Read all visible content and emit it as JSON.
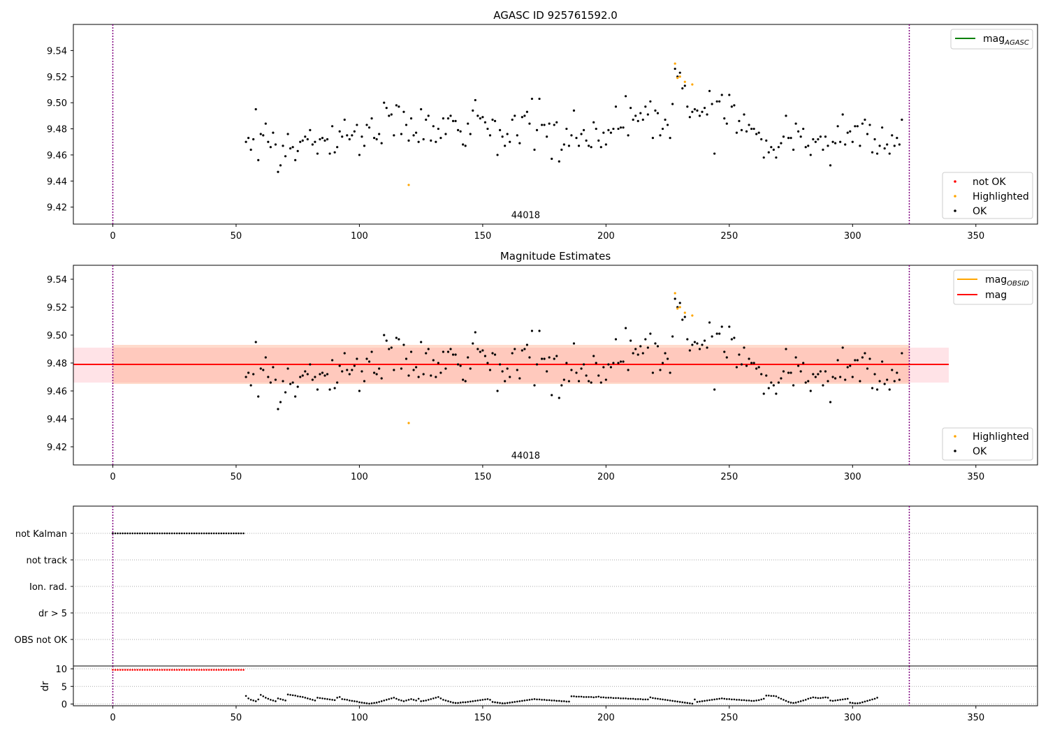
{
  "chart_data": [
    {
      "type": "scatter",
      "title": "AGASC ID 925761592.0",
      "xlim": [
        -16,
        375
      ],
      "ylim": [
        9.407,
        9.56
      ],
      "xticks": [
        0,
        50,
        100,
        150,
        200,
        250,
        300,
        350
      ],
      "yticks": [
        9.42,
        9.44,
        9.46,
        9.48,
        9.5,
        9.52,
        9.54
      ],
      "ytick_labels": [
        "9.42",
        "9.44",
        "9.46",
        "9.48",
        "9.50",
        "9.52",
        "9.54"
      ],
      "vlines": [
        0,
        323
      ],
      "annotation": {
        "text": "44018",
        "x": 161,
        "y": 9.412
      },
      "legend_top": {
        "position": "upper right",
        "entries": [
          {
            "label": "mag",
            "sub": "AGASC",
            "color": "#008000"
          }
        ]
      },
      "legend_bottom": {
        "position": "lower right",
        "entries": [
          {
            "label": "not OK",
            "color": "#ff0000"
          },
          {
            "label": "Highlighted",
            "color": "#ffa500"
          },
          {
            "label": "OK",
            "color": "#000000"
          }
        ]
      },
      "series": [
        {
          "name": "OK",
          "color": "#000000",
          "x_start": 54,
          "x_end": 323,
          "values": [
            9.47,
            9.473,
            9.464,
            9.472,
            9.495,
            9.456,
            9.476,
            9.475,
            9.484,
            9.47,
            9.466,
            9.477,
            9.468,
            9.447,
            9.452,
            9.467,
            9.459,
            9.476,
            9.465,
            9.466,
            9.456,
            9.463,
            9.47,
            9.471,
            9.474,
            9.472,
            9.479,
            9.468,
            9.47,
            9.461,
            9.472,
            9.473,
            9.471,
            9.472,
            9.461,
            9.482,
            9.462,
            9.466,
            9.478,
            9.474,
            9.487,
            9.475,
            9.472,
            9.475,
            9.478,
            9.483,
            9.46,
            9.474,
            9.467,
            9.483,
            9.481,
            9.488,
            9.473,
            9.472,
            9.476,
            9.469,
            9.5,
            9.496,
            9.49,
            9.491,
            9.475,
            9.498,
            9.497,
            9.476,
            9.493,
            9.483,
            9.471,
            9.488,
            9.475,
            9.477,
            9.47,
            9.495,
            9.472,
            9.487,
            9.49,
            9.471,
            9.482,
            9.47,
            9.48,
            9.473,
            9.488,
            9.476,
            9.488,
            9.49,
            9.486,
            9.486,
            9.479,
            9.478,
            9.468,
            9.467,
            9.484,
            9.476,
            9.494,
            9.502,
            9.49,
            9.488,
            9.489,
            9.485,
            9.48,
            9.475,
            9.487,
            9.486,
            9.46,
            9.479,
            9.474,
            9.467,
            9.476,
            9.47,
            9.487,
            9.49,
            9.475,
            9.469,
            9.489,
            9.49,
            9.493,
            9.484,
            9.503,
            9.464,
            9.479,
            9.503,
            9.483,
            9.483,
            9.474,
            9.484,
            9.457,
            9.483,
            9.485,
            9.455,
            9.464,
            9.468,
            9.48,
            9.467,
            9.475,
            9.494,
            9.473,
            9.467,
            9.476,
            9.479,
            9.471,
            9.467,
            9.466,
            9.485,
            9.48,
            9.471,
            9.466,
            9.477,
            9.468,
            9.479,
            9.477,
            9.48,
            9.497,
            9.48,
            9.481,
            9.481,
            9.505,
            9.475,
            9.496,
            9.487,
            9.49,
            9.486,
            9.492,
            9.487,
            9.497,
            9.491,
            9.501,
            9.473,
            9.494,
            9.492,
            9.475,
            9.48,
            9.487,
            9.483,
            9.473,
            9.499,
            9.526,
            9.52,
            9.523,
            9.511,
            9.513,
            9.497,
            9.489,
            9.493,
            9.495,
            9.494,
            9.49,
            9.493,
            9.496,
            9.491,
            9.509,
            9.499,
            9.461,
            9.501,
            9.501,
            9.506,
            9.488,
            9.484,
            9.506,
            9.497,
            9.498,
            9.477,
            9.486,
            9.479,
            9.491,
            9.478,
            9.483,
            9.48,
            9.48,
            9.476,
            9.477,
            9.472,
            9.458,
            9.471,
            9.462,
            9.466,
            9.464,
            9.458,
            9.466,
            9.469,
            9.474,
            9.49,
            9.473,
            9.473,
            9.464,
            9.484,
            9.478,
            9.474,
            9.48,
            9.466,
            9.467,
            9.46,
            9.472,
            9.47,
            9.472,
            9.474,
            9.464,
            9.474,
            9.467,
            9.452,
            9.47,
            9.469,
            9.482,
            9.47,
            9.491,
            9.468,
            9.477,
            9.478,
            9.47,
            9.482,
            9.482,
            9.467,
            9.484,
            9.487,
            9.476,
            9.483,
            9.462,
            9.472,
            9.461,
            9.467,
            9.481,
            9.465,
            9.468,
            9.461,
            9.475,
            9.467,
            9.473,
            9.468,
            9.487
          ]
        },
        {
          "name": "Highlighted",
          "color": "#ffa500",
          "x": [
            120,
            228,
            229,
            230,
            232,
            235
          ],
          "y": [
            9.437,
            9.53,
            9.519,
            9.52,
            9.516,
            9.514
          ]
        }
      ]
    },
    {
      "type": "scatter",
      "title": "Magnitude Estimates",
      "xlim": [
        -16,
        375
      ],
      "ylim": [
        9.407,
        9.55
      ],
      "xticks": [
        0,
        50,
        100,
        150,
        200,
        250,
        300,
        350
      ],
      "yticks": [
        9.42,
        9.44,
        9.46,
        9.48,
        9.5,
        9.52,
        9.54
      ],
      "ytick_labels": [
        "9.42",
        "9.44",
        "9.46",
        "9.48",
        "9.50",
        "9.52",
        "9.54"
      ],
      "vlines": [
        0,
        323
      ],
      "annotation": {
        "text": "44018",
        "x": 161,
        "y": 9.412
      },
      "bands": [
        {
          "x": [
            -16,
            339
          ],
          "y": [
            9.466,
            9.491
          ],
          "color": "#ffb6c1",
          "opacity": 0.38
        },
        {
          "x": [
            0,
            323
          ],
          "y": [
            9.465,
            9.493
          ],
          "color": "#ffa07a",
          "opacity": 0.38
        }
      ],
      "lines": [
        {
          "name": "mag",
          "sub": "OBSID",
          "color": "#ffa500",
          "x": [
            0,
            323
          ],
          "y": 9.479
        },
        {
          "name": "mag",
          "color": "#ff0000",
          "x": [
            -16,
            339
          ],
          "y": 9.479
        }
      ],
      "legend_top": {
        "position": "upper right",
        "entries": [
          {
            "label": "mag",
            "sub": "OBSID",
            "color": "#ffa500"
          },
          {
            "label": "mag",
            "color": "#ff0000"
          }
        ]
      },
      "legend_bottom": {
        "position": "lower right",
        "entries": [
          {
            "label": "Highlighted",
            "color": "#ffa500"
          },
          {
            "label": "OK",
            "color": "#000000"
          }
        ]
      }
    },
    {
      "type": "scatter",
      "xlim": [
        -16,
        375
      ],
      "categories": [
        "not Kalman",
        "not track",
        "Ion. rad.",
        "dr > 5",
        "OBS not OK"
      ],
      "flags": [
        {
          "category": "not Kalman",
          "x_start": 0,
          "x_end": 53,
          "color": "#000000"
        }
      ],
      "vlines": [
        0,
        323
      ]
    },
    {
      "type": "scatter",
      "ylabel": "dr",
      "xlim": [
        -16,
        375
      ],
      "ylim": [
        -0.5,
        10.8
      ],
      "yticks": [
        0,
        5,
        10
      ],
      "xticks": [
        0,
        50,
        100,
        150,
        200,
        250,
        300,
        350
      ],
      "vlines": [
        0,
        323
      ],
      "series": [
        {
          "name": "not OK",
          "color": "#ff0000",
          "x_start": 0,
          "x_end": 53,
          "y": 9.7
        },
        {
          "name": "OK",
          "color": "#000000",
          "x_start": 54,
          "x_end": 323,
          "values": [
            2.3,
            1.6,
            1.2,
            1.0,
            0.8,
            1.3,
            2.6,
            2.2,
            1.8,
            1.5,
            1.2,
            1.0,
            0.8,
            1.6,
            1.4,
            1.2,
            1.0,
            2.7,
            2.6,
            2.5,
            2.4,
            2.2,
            2.1,
            2.0,
            1.8,
            1.6,
            1.4,
            1.2,
            1.0,
            1.8,
            1.7,
            1.6,
            1.5,
            1.4,
            1.3,
            1.2,
            1.1,
            1.8,
            2.0,
            1.4,
            1.3,
            1.2,
            1.0,
            0.9,
            0.8,
            0.7,
            0.5,
            0.4,
            0.3,
            0.2,
            0.1,
            0.2,
            0.3,
            0.4,
            0.6,
            0.8,
            1.0,
            1.2,
            1.4,
            1.6,
            1.8,
            1.5,
            1.2,
            1.0,
            0.8,
            1.0,
            1.2,
            1.4,
            1.2,
            1.0,
            1.5,
            0.8,
            0.9,
            1.0,
            1.2,
            1.4,
            1.6,
            1.8,
            2.0,
            1.6,
            1.2,
            1.0,
            0.8,
            0.6,
            0.4,
            0.3,
            0.3,
            0.4,
            0.5,
            0.5,
            0.6,
            0.7,
            0.8,
            0.9,
            1.0,
            1.1,
            1.2,
            1.3,
            1.4,
            1.2,
            0.6,
            0.5,
            0.4,
            0.3,
            0.2,
            0.2,
            0.3,
            0.4,
            0.5,
            0.6,
            0.7,
            0.8,
            0.9,
            1.0,
            1.1,
            1.2,
            1.3,
            1.4,
            1.3,
            1.3,
            1.2,
            1.2,
            1.1,
            1.1,
            1.0,
            1.0,
            0.9,
            0.9,
            0.8,
            0.8,
            0.7,
            0.7,
            2.2,
            2.2,
            2.1,
            2.1,
            2.1,
            2.0,
            2.0,
            2.0,
            2.0,
            1.9,
            2.0,
            2.1,
            1.9,
            1.9,
            1.8,
            1.8,
            1.8,
            1.7,
            1.7,
            1.7,
            1.6,
            1.6,
            1.6,
            1.5,
            1.5,
            1.5,
            1.4,
            1.4,
            1.4,
            1.3,
            1.3,
            1.3,
            1.9,
            1.7,
            1.6,
            1.5,
            1.4,
            1.3,
            1.2,
            1.1,
            1.0,
            0.9,
            0.8,
            0.7,
            0.6,
            0.5,
            0.4,
            0.3,
            0.2,
            0.1,
            1.3,
            0.6,
            0.7,
            0.8,
            0.9,
            1.0,
            1.1,
            1.2,
            1.3,
            1.4,
            1.5,
            1.6,
            1.5,
            1.4,
            1.4,
            1.3,
            1.3,
            1.2,
            1.2,
            1.1,
            1.1,
            1.0,
            1.0,
            0.9,
            0.9,
            1.0,
            1.1,
            1.3,
            1.5,
            2.4,
            2.4,
            2.3,
            2.3,
            2.2,
            1.8,
            1.5,
            1.2,
            0.9,
            0.6,
            0.4,
            0.3,
            0.4,
            0.6,
            0.8,
            1.0,
            1.2,
            1.5,
            1.7,
            1.9,
            1.8,
            1.7,
            1.7,
            1.8,
            1.9,
            1.8,
            1.0,
            0.9,
            1.0,
            1.1,
            1.2,
            1.3,
            1.4,
            1.5,
            0.4,
            0.3,
            0.2,
            0.2,
            0.3,
            0.5,
            0.7,
            0.9,
            1.1,
            1.3,
            1.5,
            1.8
          ]
        }
      ]
    }
  ]
}
